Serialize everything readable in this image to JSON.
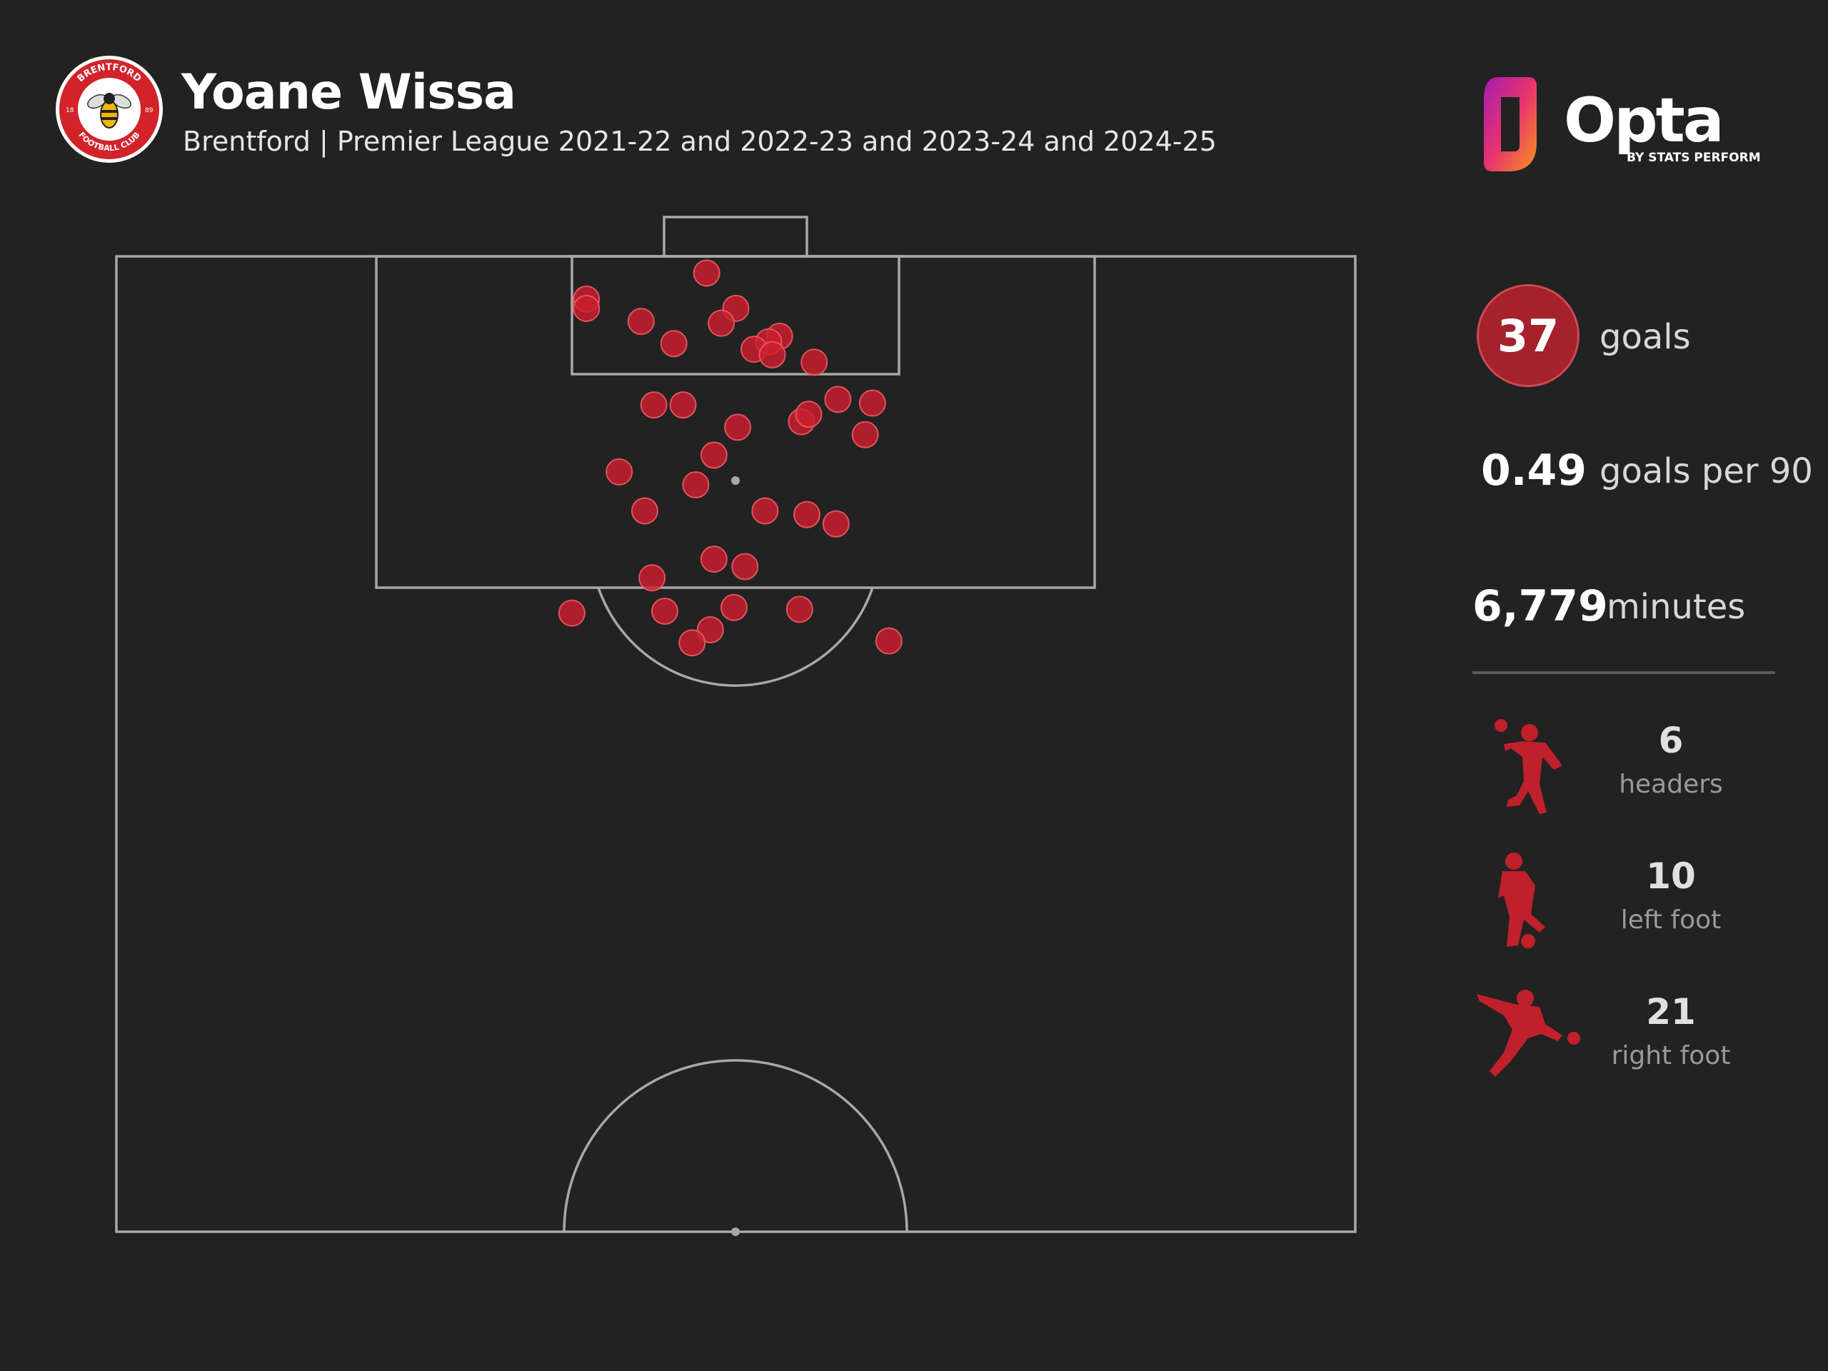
{
  "header": {
    "title": "Yoane Wissa",
    "subtitle": "Brentford | Premier League 2021-22 and 2022-23 and 2023-24 and 2024-25"
  },
  "crest": {
    "text_top": "BRENTFORD",
    "text_bottom": "FOOTBALL CLUB",
    "year_left": "18",
    "year_right": "89"
  },
  "brand": {
    "name": "Opta",
    "byline": "BY STATS PERFORM"
  },
  "stats": {
    "goals_value": "37",
    "goals_label": "goals",
    "per90_value": "0.49",
    "per90_label": "goals per 90",
    "minutes_value": "6,779",
    "minutes_label": "minutes"
  },
  "goal_types": [
    {
      "count": "6",
      "label": "headers",
      "icon": "header-icon"
    },
    {
      "count": "10",
      "label": "left foot",
      "icon": "left-foot-icon"
    },
    {
      "count": "21",
      "label": "right foot",
      "icon": "right-foot-icon"
    }
  ],
  "colors": {
    "background": "#222222",
    "accent": "#c0202c",
    "pitch_lines": "#a8a8a8"
  },
  "chart_data": {
    "type": "scatter",
    "description_units": "x = metres across pitch (0-68), y = metres from goal line",
    "xlim": [
      0,
      68
    ],
    "ylim": [
      0,
      52.5
    ],
    "points": [
      {
        "x": 32.4,
        "y": 0.9
      },
      {
        "x": 25.8,
        "y": 2.3
      },
      {
        "x": 34.0,
        "y": 2.8
      },
      {
        "x": 25.8,
        "y": 2.8
      },
      {
        "x": 28.8,
        "y": 3.5
      },
      {
        "x": 33.2,
        "y": 3.6
      },
      {
        "x": 36.4,
        "y": 4.3
      },
      {
        "x": 35.8,
        "y": 4.6
      },
      {
        "x": 30.6,
        "y": 4.7
      },
      {
        "x": 35.0,
        "y": 5.0
      },
      {
        "x": 36.0,
        "y": 5.3
      },
      {
        "x": 38.3,
        "y": 5.7
      },
      {
        "x": 37.6,
        "y": 8.9
      },
      {
        "x": 38.0,
        "y": 8.5
      },
      {
        "x": 39.6,
        "y": 7.7
      },
      {
        "x": 41.5,
        "y": 7.9
      },
      {
        "x": 29.5,
        "y": 8.0
      },
      {
        "x": 31.1,
        "y": 8.0
      },
      {
        "x": 34.1,
        "y": 9.2
      },
      {
        "x": 41.1,
        "y": 9.6
      },
      {
        "x": 27.6,
        "y": 11.6
      },
      {
        "x": 32.8,
        "y": 10.7
      },
      {
        "x": 31.8,
        "y": 12.3
      },
      {
        "x": 29.0,
        "y": 13.7
      },
      {
        "x": 35.6,
        "y": 13.7
      },
      {
        "x": 37.9,
        "y": 13.9
      },
      {
        "x": 39.5,
        "y": 14.4
      },
      {
        "x": 32.8,
        "y": 16.3
      },
      {
        "x": 34.5,
        "y": 16.7
      },
      {
        "x": 29.4,
        "y": 17.3
      },
      {
        "x": 25.0,
        "y": 19.2
      },
      {
        "x": 30.1,
        "y": 19.1
      },
      {
        "x": 33.9,
        "y": 18.9
      },
      {
        "x": 37.5,
        "y": 19.0
      },
      {
        "x": 32.6,
        "y": 20.1
      },
      {
        "x": 31.6,
        "y": 20.8
      },
      {
        "x": 42.4,
        "y": 20.7
      }
    ]
  }
}
